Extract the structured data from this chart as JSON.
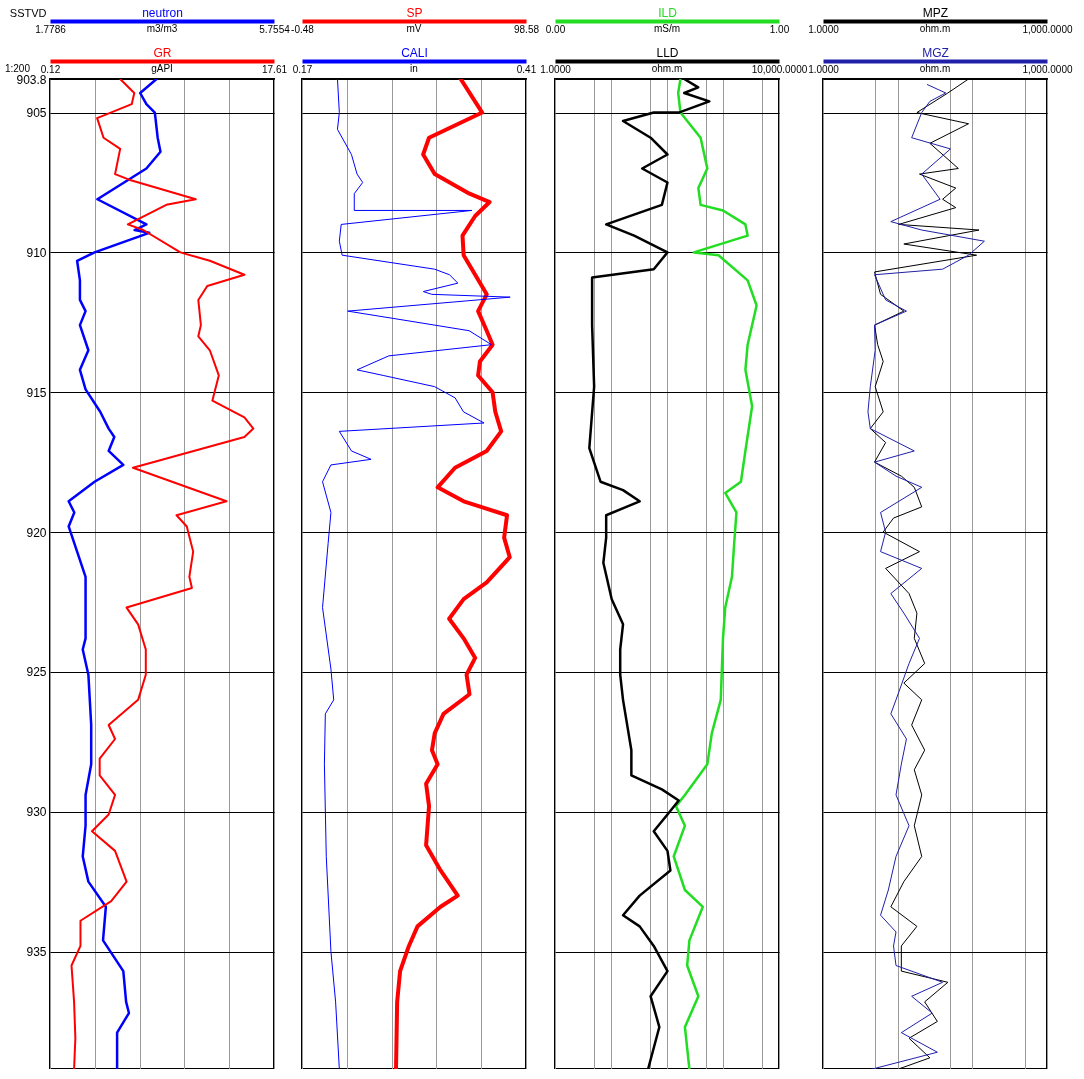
{
  "chart_data": [
    {
      "type": "line",
      "ylabel": "SSTVD",
      "annotations": [
        "m3/m3",
        "gAPI",
        "1:200"
      ],
      "ylim": [
        939.2,
        903.8
      ],
      "yticks": [
        903.8,
        905,
        910,
        915,
        920,
        925,
        930,
        935
      ],
      "grid": true,
      "x2lim": [
        1.7786,
        5.7554
      ],
      "x2ticks": [
        1.7786,
        5.7554
      ],
      "xlim": [
        0.12,
        17.61
      ],
      "xticks": [
        0.12,
        {
          "value": 3.618,
          "label": null
        },
        {
          "value": 7.116,
          "label": null
        },
        {
          "value": 10.614,
          "label": null
        },
        {
          "value": 14.112,
          "label": null
        },
        17.61
      ],
      "series": [
        {
          "name": "neutron",
          "color": "#0000ff",
          "axis": "x2",
          "x": [
            3.67,
            3.38,
            3.49,
            3.64,
            3.69,
            3.74,
            3.49,
            2.62,
            3.49,
            3.28,
            3.54,
            2.57,
            2.26,
            2.31,
            2.31,
            2.41,
            2.31,
            2.46,
            2.31,
            2.41,
            2.67,
            2.82,
            2.92,
            2.82,
            3.08,
            2.57,
            2.11,
            2.21,
            2.11,
            2.26,
            2.41,
            2.41,
            2.36,
            2.46,
            2.51,
            2.51,
            2.41,
            2.41,
            2.36,
            2.46,
            2.77,
            2.72,
            3.08,
            3.13,
            3.18,
            2.97,
            2.97
          ],
          "values": [
            903.8,
            904.3,
            904.7,
            905.0,
            905.9,
            906.4,
            907.0,
            908.1,
            909.0,
            909.2,
            909.3,
            910.0,
            910.3,
            911.0,
            911.7,
            912.1,
            912.6,
            913.5,
            914.2,
            914.9,
            915.7,
            916.3,
            916.6,
            917.1,
            917.6,
            918.2,
            918.9,
            919.3,
            919.8,
            920.7,
            921.6,
            923.8,
            924.2,
            925.1,
            926.9,
            928.3,
            929.4,
            930.5,
            931.6,
            932.5,
            933.4,
            934.6,
            935.7,
            936.8,
            937.2,
            937.9,
            939.2
          ]
        },
        {
          "name": "GR",
          "color": "#ff0000",
          "x": [
            5.6,
            6.7,
            6.5,
            3.8,
            4.3,
            5.6,
            5.2,
            6.3,
            11.5,
            9.2,
            6.2,
            7.4,
            10.3,
            12.6,
            15.3,
            12.4,
            11.7,
            11.9,
            11.7,
            12.6,
            13.3,
            12.8,
            15.3,
            16.0,
            15.3,
            6.6,
            13.9,
            10.0,
            10.8,
            11.3,
            11.0,
            11.2,
            6.1,
            7.0,
            7.6,
            7.6,
            7.0,
            4.7,
            5.2,
            4.0,
            4.0,
            5.2,
            4.7,
            3.4,
            5.2,
            6.1,
            4.9,
            2.5,
            2.5,
            1.8,
            2.0,
            2.1,
            2.0
          ],
          "values": [
            903.8,
            904.3,
            904.7,
            905.2,
            905.9,
            906.3,
            907.2,
            907.4,
            908.1,
            908.3,
            909.0,
            909.2,
            910.0,
            910.3,
            910.8,
            911.2,
            911.7,
            912.6,
            913.0,
            913.5,
            914.4,
            915.3,
            915.9,
            916.3,
            916.6,
            917.7,
            918.9,
            919.4,
            919.8,
            920.7,
            921.6,
            922.0,
            922.7,
            923.3,
            924.2,
            925.1,
            926.0,
            926.9,
            927.4,
            928.1,
            928.7,
            929.4,
            930.1,
            930.7,
            931.4,
            932.5,
            933.2,
            933.9,
            934.8,
            935.5,
            936.8,
            938.1,
            939.2
          ]
        }
      ]
    },
    {
      "type": "line",
      "annotations": [
        "mV",
        "in"
      ],
      "tick_labels": "x",
      "ylim": [
        939.2,
        903.8
      ],
      "yticks": [
        903.8,
        905,
        910,
        915,
        920,
        925,
        930,
        935
      ],
      "grid": true,
      "x2lim": [
        -0.48,
        98.58
      ],
      "x2ticks": [
        -0.48,
        98.58
      ],
      "xlim": [
        0.17,
        0.41
      ],
      "xticks": [
        0.17,
        {
          "value": 0.218,
          "label": null
        },
        {
          "value": 0.266,
          "label": null
        },
        {
          "value": 0.314,
          "label": null
        },
        {
          "value": 0.362,
          "label": null
        },
        0.41
      ],
      "series": [
        {
          "name": "SP",
          "color": "#ff0000",
          "axis": "x2",
          "x": [
            69.7,
            79.2,
            55.7,
            53.1,
            58.2,
            73.6,
            82.5,
            76.1,
            70.5,
            71.0,
            76.1,
            81.2,
            77.4,
            81.2,
            83.8,
            78.2,
            77.4,
            83.8,
            85.0,
            87.6,
            81.2,
            67.2,
            59.5,
            71.0,
            90.2,
            88.9,
            91.4,
            81.2,
            71.0,
            64.6,
            71.0,
            76.1,
            72.3,
            73.6,
            62.1,
            58.2,
            57.0,
            59.5,
            54.4,
            55.7,
            54.4,
            60.8,
            68.4,
            60.8,
            50.6,
            46.8,
            42.9,
            41.6,
            41.1
          ],
          "values": [
            903.8,
            905.0,
            905.9,
            906.5,
            907.2,
            907.9,
            908.2,
            908.7,
            909.4,
            910.1,
            910.8,
            911.5,
            912.1,
            912.8,
            913.3,
            913.9,
            914.4,
            915.0,
            915.7,
            916.4,
            917.1,
            917.7,
            918.4,
            918.9,
            919.4,
            920.2,
            920.9,
            921.8,
            922.4,
            923.1,
            923.8,
            924.5,
            925.1,
            925.8,
            926.5,
            927.2,
            927.8,
            928.3,
            929.0,
            929.8,
            931.2,
            932.1,
            933.0,
            933.4,
            934.1,
            934.8,
            935.7,
            936.8,
            939.2
          ]
        },
        {
          "name": "CALI",
          "color": "#0000ff",
          "x": [
            0.208,
            0.21,
            0.208,
            0.223,
            0.229,
            0.235,
            0.226,
            0.226,
            0.352,
            0.212,
            0.21,
            0.213,
            0.312,
            0.328,
            0.337,
            0.3,
            0.309,
            0.393,
            0.219,
            0.275,
            0.349,
            0.373,
            0.263,
            0.229,
            0.257,
            0.312,
            0.334,
            0.343,
            0.365,
            0.21,
            0.223,
            0.244,
            0.201,
            0.192,
            0.201,
            0.198,
            0.192,
            0.201,
            0.204,
            0.195,
            0.194,
            0.196,
            0.201,
            0.206,
            0.21
          ],
          "values": [
            903.8,
            905.0,
            905.6,
            906.5,
            907.2,
            907.5,
            907.9,
            908.5,
            908.5,
            909.0,
            909.6,
            910.1,
            910.6,
            910.8,
            911.1,
            911.4,
            911.5,
            911.6,
            912.1,
            912.4,
            912.8,
            913.3,
            913.7,
            914.2,
            914.4,
            914.8,
            915.2,
            915.7,
            916.1,
            916.4,
            917.1,
            917.4,
            917.6,
            918.2,
            919.3,
            920.4,
            922.7,
            924.9,
            926.0,
            926.5,
            928.3,
            931.6,
            935.0,
            936.8,
            939.2
          ]
        }
      ]
    },
    {
      "type": "line",
      "annotations": [
        "mS/m",
        "ohm.m"
      ],
      "tick_labels": "x",
      "ylim": [
        939.2,
        903.8
      ],
      "yticks": [
        903.8,
        905,
        910,
        915,
        920,
        925,
        930,
        935
      ],
      "grid": true,
      "log": "x",
      "x2lim": [
        0,
        1
      ],
      "x2ticks": [
        {
          "value": 0,
          "label": "0.00"
        },
        {
          "value": 1,
          "label": "1.00"
        }
      ],
      "xlim": [
        1,
        10000
      ],
      "xticks": [
        {
          "value": 1,
          "label": "1.0000"
        },
        {
          "value": 5,
          "label": null
        },
        {
          "value": 10,
          "label": null
        },
        {
          "value": 50,
          "label": null
        },
        {
          "value": 100,
          "label": null
        },
        {
          "value": 500,
          "label": null
        },
        {
          "value": 1000,
          "label": null
        },
        {
          "value": 5000,
          "label": null
        },
        {
          "value": 10000,
          "label": "10,000.0000"
        }
      ],
      "series": [
        {
          "name": "ILD",
          "color": "#22dd22",
          "axis": "x2",
          "x": [
            0.56,
            0.55,
            0.56,
            0.65,
            0.68,
            0.64,
            0.65,
            0.75,
            0.85,
            0.86,
            0.62,
            0.73,
            0.86,
            0.9,
            0.86,
            0.85,
            0.88,
            0.85,
            0.83,
            0.76,
            0.81,
            0.8,
            0.79,
            0.76,
            0.75,
            0.74,
            0.7,
            0.68,
            0.58,
            0.54,
            0.58,
            0.53,
            0.58,
            0.66,
            0.6,
            0.59,
            0.64,
            0.58,
            0.6
          ],
          "values": [
            903.8,
            904.3,
            905.0,
            905.9,
            907.0,
            907.7,
            908.3,
            908.5,
            909.0,
            909.4,
            910.0,
            910.1,
            911.0,
            911.9,
            913.3,
            914.2,
            915.5,
            917.1,
            918.2,
            918.6,
            919.3,
            920.4,
            921.6,
            922.7,
            923.8,
            926.0,
            927.2,
            928.3,
            929.4,
            929.8,
            930.5,
            931.6,
            932.8,
            933.4,
            934.6,
            935.5,
            936.6,
            937.7,
            939.2
          ]
        },
        {
          "name": "LLD",
          "color": "#000000",
          "x": [
            203,
            361,
            203,
            570,
            162,
            58,
            16.4,
            51,
            102,
            36,
            102,
            81,
            8.2,
            25.9,
            102,
            58,
            4.6,
            4.6,
            5.0,
            4.1,
            6.5,
            16.4,
            32.5,
            8.2,
            8.2,
            7.3,
            10.3,
            16.4,
            14.6,
            14.6,
            16.4,
            23.1,
            23.1,
            81,
            162,
            102,
            58,
            102,
            115,
            32.5,
            16.4,
            32.5,
            58,
            102,
            51,
            73,
            46
          ],
          "values": [
            903.8,
            904.1,
            904.3,
            904.6,
            905.0,
            905.0,
            905.3,
            905.9,
            906.5,
            907.0,
            907.5,
            908.3,
            909.0,
            909.4,
            910.0,
            910.6,
            910.9,
            912.6,
            914.8,
            917.0,
            918.2,
            918.5,
            918.9,
            919.4,
            920.2,
            921.1,
            922.4,
            923.3,
            924.2,
            925.1,
            926.0,
            927.8,
            928.7,
            929.2,
            929.6,
            930.1,
            930.7,
            931.4,
            932.1,
            933.0,
            933.7,
            934.1,
            934.8,
            935.7,
            936.6,
            937.7,
            939.2
          ]
        }
      ]
    },
    {
      "type": "line",
      "annotations": [
        "ohm.m",
        "ohm.m"
      ],
      "tick_labels": "x",
      "ylim": [
        939.2,
        903.8
      ],
      "yticks": [
        903.8,
        905,
        910,
        915,
        920,
        925,
        930,
        935
      ],
      "grid": true,
      "log": "x",
      "x2lim": [
        1,
        1000
      ],
      "x2ticks": [
        {
          "value": 1,
          "label": "1.0000"
        },
        {
          "value": 1000,
          "label": "1,000.0000"
        }
      ],
      "xlim": [
        1,
        1000
      ],
      "xticks": [
        {
          "value": 1,
          "label": "1.0000"
        },
        {
          "value": 5,
          "label": null
        },
        {
          "value": 10,
          "label": null
        },
        {
          "value": 50,
          "label": null
        },
        {
          "value": 100,
          "label": null
        },
        {
          "value": 500,
          "label": null
        },
        {
          "value": 1000,
          "label": "1,000.0000"
        }
      ],
      "series": [
        {
          "name": "MPZ",
          "color": "#000000",
          "x": [
            89,
            47,
            18.1,
            89,
            27,
            65,
            19.6,
            60,
            40,
            60,
            10.3,
            123,
            12.1,
            114,
            4.9,
            5.9,
            12.1,
            4.9,
            5.4,
            6.4,
            5.0,
            6.4,
            4.3,
            6.9,
            4.9,
            11.2,
            16.7,
            21,
            8.8,
            6.4,
            19.6,
            6.9,
            14.2,
            18.1,
            16.7,
            23,
            12.1,
            21,
            15.4,
            23,
            16.7,
            21,
            16.7,
            21,
            12.1,
            8.1,
            18.1,
            11.2,
            11.2,
            47,
            23,
            34,
            14.2,
            27,
            10.3
          ],
          "values": [
            903.8,
            904.3,
            905.0,
            905.4,
            906.1,
            907.0,
            907.2,
            907.7,
            908.1,
            908.4,
            909.0,
            909.2,
            909.7,
            910.1,
            910.7,
            911.5,
            912.1,
            912.6,
            913.3,
            913.9,
            914.8,
            915.7,
            916.3,
            916.8,
            917.5,
            918.0,
            918.4,
            919.1,
            919.5,
            920.0,
            920.7,
            921.3,
            922.2,
            922.9,
            923.8,
            924.7,
            925.4,
            926.0,
            926.9,
            927.8,
            928.5,
            929.4,
            930.5,
            931.6,
            932.5,
            933.4,
            934.1,
            934.8,
            935.7,
            936.1,
            936.8,
            937.5,
            938.1,
            938.8,
            939.2
          ]
        },
        {
          "name": "MGZ",
          "color": "#2020a8",
          "x": [
            25,
            44,
            27,
            21,
            15.4,
            51,
            21,
            37,
            8.1,
            21,
            145,
            89,
            40,
            4.9,
            6.9,
            13.1,
            4.9,
            5.0,
            4.3,
            4.0,
            4.3,
            16.7,
            4.9,
            9.5,
            21,
            5.9,
            6.9,
            5.9,
            21,
            8.1,
            12.1,
            19.6,
            14.2,
            9.5,
            8.1,
            13.1,
            11.2,
            9.5,
            14.2,
            9.5,
            7.5,
            5.9,
            9.5,
            8.8,
            9.5,
            40,
            15.4,
            29,
            11.2,
            34,
            4.6
          ],
          "values": [
            904.0,
            904.3,
            904.6,
            905.0,
            905.9,
            906.3,
            907.2,
            908.1,
            908.9,
            909.2,
            909.6,
            910.1,
            910.6,
            910.8,
            911.7,
            912.1,
            912.6,
            913.5,
            914.8,
            915.7,
            916.3,
            917.1,
            917.5,
            918.0,
            918.4,
            919.3,
            920.0,
            920.7,
            921.3,
            922.2,
            922.9,
            923.8,
            924.7,
            926.0,
            926.5,
            927.4,
            928.3,
            929.4,
            930.5,
            931.6,
            932.8,
            933.7,
            934.3,
            934.8,
            935.5,
            936.1,
            936.6,
            937.2,
            937.9,
            938.6,
            939.2
          ]
        }
      ]
    }
  ]
}
